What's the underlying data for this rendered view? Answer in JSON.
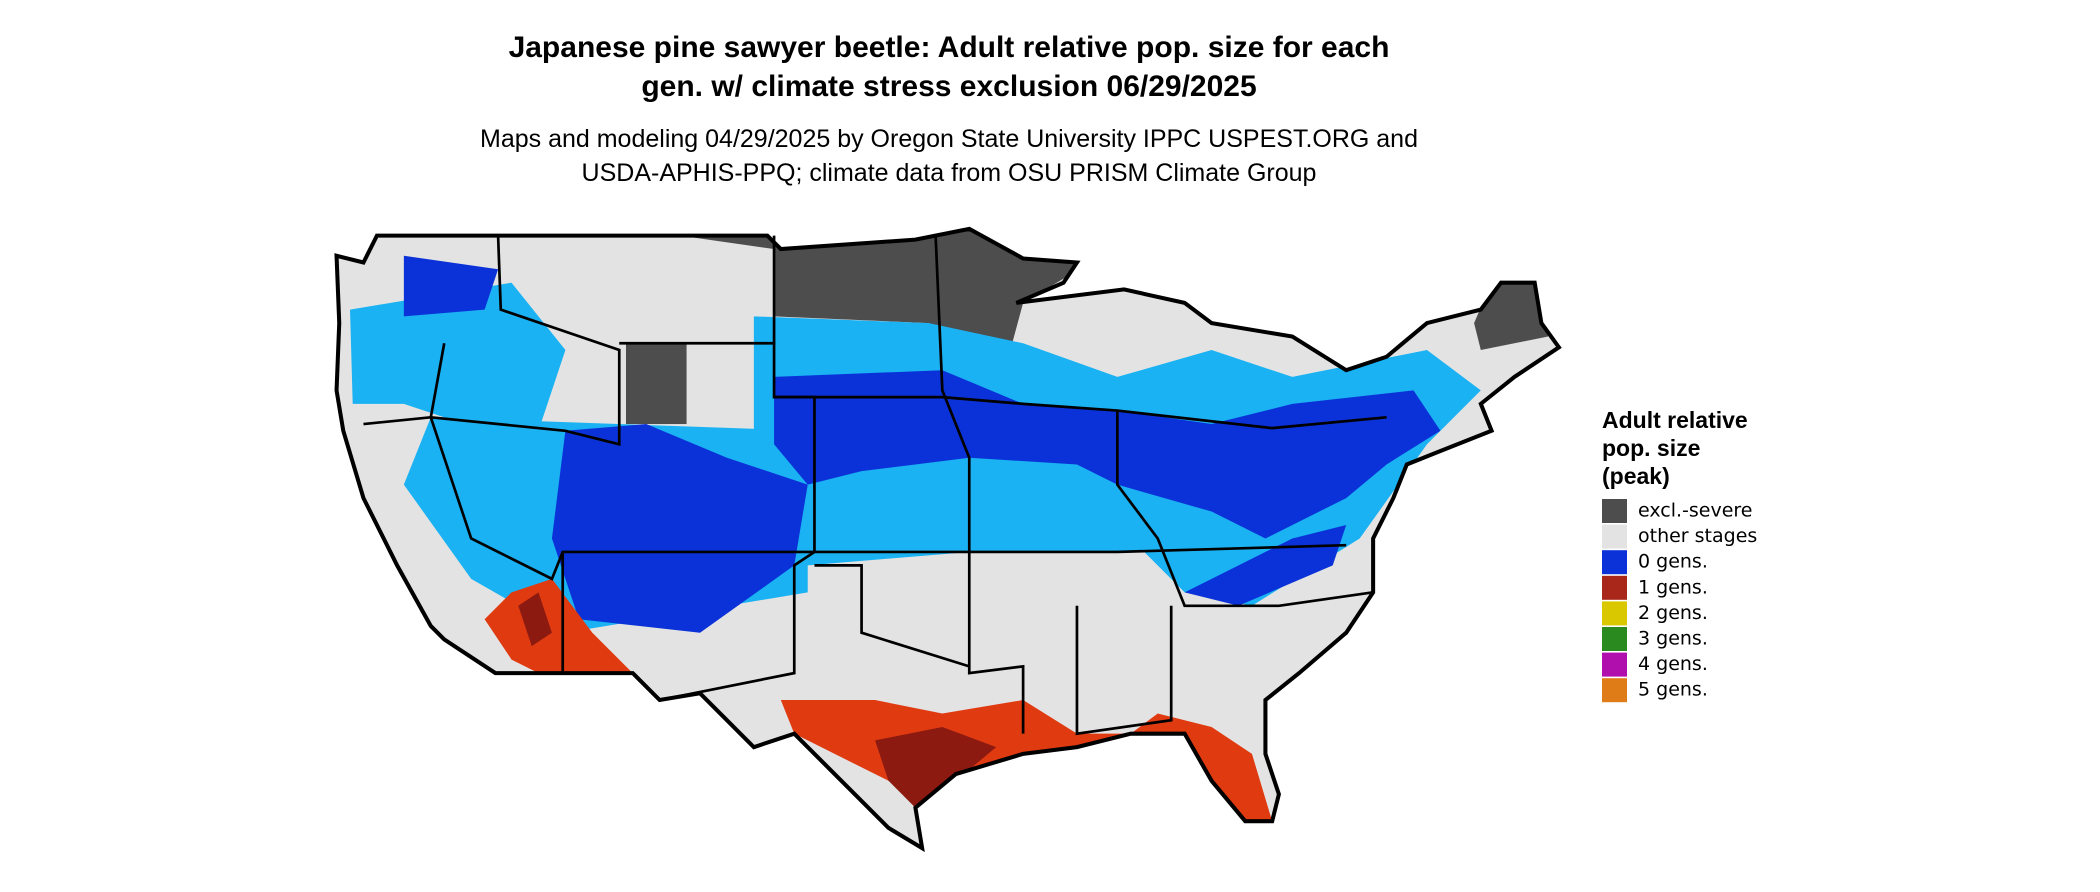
{
  "header": {
    "title": [
      "Japanese pine sawyer beetle: Adult relative pop. size for each",
      "gen. w/ climate stress exclusion 06/29/2025"
    ],
    "subtitle": [
      "Maps and modeling 04/29/2025 by Oregon State University IPPC USPEST.ORG and",
      "USDA-APHIS-PPQ; climate data from OSU PRISM Climate Group"
    ]
  },
  "legend": {
    "title": [
      "Adult relative",
      "pop. size",
      "(peak)"
    ],
    "items": [
      {
        "label": "excl.-severe",
        "color": "#4d4d4d"
      },
      {
        "label": "other stages",
        "color": "#e3e3e3"
      },
      {
        "label": "0 gens.",
        "color": "#0a32d8"
      },
      {
        "label": "1 gens.",
        "color": "#a8261a"
      },
      {
        "label": "2 gens.",
        "color": "#d9c800"
      },
      {
        "label": "3 gens.",
        "color": "#2a8a1f"
      },
      {
        "label": "4 gens.",
        "color": "#b00fae"
      },
      {
        "label": "5 gens.",
        "color": "#e07c18"
      }
    ]
  }
}
